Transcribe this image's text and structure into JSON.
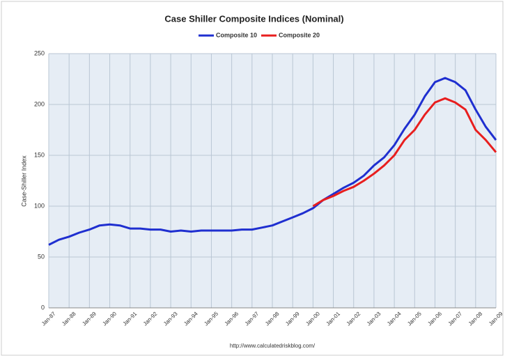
{
  "chart_data": {
    "type": "line",
    "title": "Case Shiller Composite Indices (Nominal)",
    "y_label": "Case-Shiller Index",
    "source": "http://www.calculatedriskblog.com/",
    "x": [
      1987.0,
      1987.5,
      1988.0,
      1988.5,
      1989.0,
      1989.5,
      1990.0,
      1990.5,
      1991.0,
      1991.5,
      1992.0,
      1992.5,
      1993.0,
      1993.5,
      1994.0,
      1994.5,
      1995.0,
      1995.5,
      1996.0,
      1996.5,
      1997.0,
      1997.5,
      1998.0,
      1998.5,
      1999.0,
      1999.5,
      2000.0,
      2000.5,
      2001.0,
      2001.5,
      2002.0,
      2002.5,
      2003.0,
      2003.5,
      2004.0,
      2004.5,
      2005.0,
      2005.5,
      2006.0,
      2006.5,
      2007.0,
      2007.5,
      2008.0,
      2008.5,
      2009.0
    ],
    "series": [
      {
        "name": "Composite 10",
        "color": "#1f2fd0",
        "values": [
          62,
          67,
          70,
          74,
          77,
          81,
          82,
          81,
          78,
          78,
          77,
          77,
          75,
          76,
          75,
          76,
          76,
          76,
          76,
          77,
          77,
          79,
          81,
          85,
          89,
          93,
          98,
          106,
          112,
          118,
          123,
          130,
          140,
          148,
          160,
          176,
          190,
          208,
          222,
          226,
          222,
          214,
          195,
          178,
          165
        ]
      },
      {
        "name": "Composite 20",
        "color": "#e81e1e",
        "values": [
          null,
          null,
          null,
          null,
          null,
          null,
          null,
          null,
          null,
          null,
          null,
          null,
          null,
          null,
          null,
          null,
          null,
          null,
          null,
          null,
          null,
          null,
          null,
          null,
          null,
          null,
          100,
          106,
          110,
          115,
          119,
          125,
          132,
          140,
          150,
          165,
          175,
          190,
          202,
          206,
          202,
          195,
          175,
          165,
          153
        ]
      }
    ],
    "xlim": [
      1987,
      2009
    ],
    "xticks": [
      {
        "value": 1987,
        "label": "Jan-87"
      },
      {
        "value": 1988,
        "label": "Jan-88"
      },
      {
        "value": 1989,
        "label": "Jan-89"
      },
      {
        "value": 1990,
        "label": "Jan-90"
      },
      {
        "value": 1991,
        "label": "Jan-91"
      },
      {
        "value": 1992,
        "label": "Jan-92"
      },
      {
        "value": 1993,
        "label": "Jan-93"
      },
      {
        "value": 1994,
        "label": "Jan-94"
      },
      {
        "value": 1995,
        "label": "Jan-95"
      },
      {
        "value": 1996,
        "label": "Jan-96"
      },
      {
        "value": 1997,
        "label": "Jan-97"
      },
      {
        "value": 1998,
        "label": "Jan-98"
      },
      {
        "value": 1999,
        "label": "Jan-99"
      },
      {
        "value": 2000,
        "label": "Jan-00"
      },
      {
        "value": 2001,
        "label": "Jan-01"
      },
      {
        "value": 2002,
        "label": "Jan-02"
      },
      {
        "value": 2003,
        "label": "Jan-03"
      },
      {
        "value": 2004,
        "label": "Jan-04"
      },
      {
        "value": 2005,
        "label": "Jan-05"
      },
      {
        "value": 2006,
        "label": "Jan-06"
      },
      {
        "value": 2007,
        "label": "Jan-07"
      },
      {
        "value": 2008,
        "label": "Jan-08"
      },
      {
        "value": 2009,
        "label": "Jan-09"
      }
    ],
    "ylim": [
      0,
      250
    ],
    "yticks": [
      0,
      50,
      100,
      150,
      200,
      250
    ],
    "grid": true
  }
}
